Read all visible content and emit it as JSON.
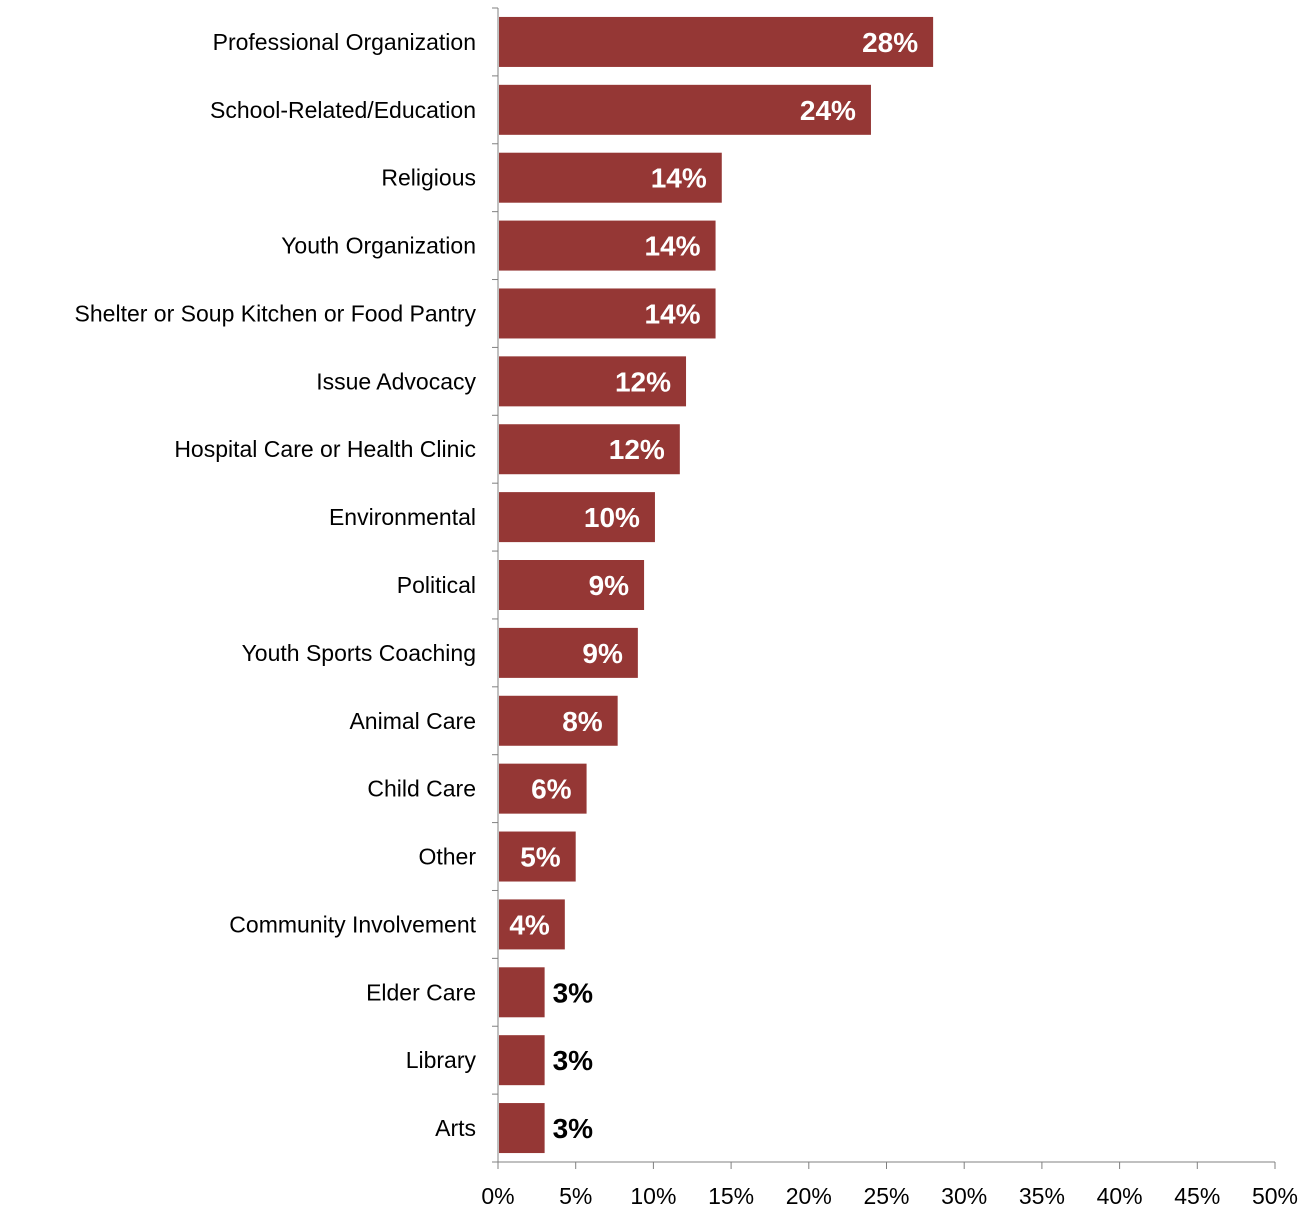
{
  "chart_data": {
    "type": "bar",
    "orientation": "horizontal",
    "categories": [
      "Professional Organization",
      "School-Related/Education",
      "Religious",
      "Youth Organization",
      "Shelter or Soup Kitchen or Food Pantry",
      "Issue Advocacy",
      "Hospital Care or Health Clinic",
      "Environmental",
      "Political",
      "Youth Sports Coaching",
      "Animal Care",
      "Child Care",
      "Other",
      "Community Involvement",
      "Elder Care",
      "Library",
      "Arts"
    ],
    "values": [
      28,
      24,
      14.4,
      14,
      14,
      12.1,
      11.7,
      10.1,
      9.4,
      9,
      7.7,
      5.7,
      5,
      4.3,
      3,
      3,
      3
    ],
    "data_labels": [
      "28%",
      "24%",
      "14%",
      "14%",
      "14%",
      "12%",
      "12%",
      "10%",
      "9%",
      "9%",
      "8%",
      "6%",
      "5%",
      "4%",
      "3%",
      "3%",
      "3%"
    ],
    "x_ticks": [
      0,
      5,
      10,
      15,
      20,
      25,
      30,
      35,
      40,
      45,
      50
    ],
    "x_tick_labels": [
      "0%",
      "5%",
      "10%",
      "15%",
      "20%",
      "25%",
      "30%",
      "35%",
      "40%",
      "45%",
      "50%"
    ],
    "xlim": [
      0,
      50
    ],
    "title": "",
    "xlabel": "",
    "ylabel": "",
    "grid": false,
    "legend": "none",
    "colors": {
      "bar": "#953735",
      "label_inside": "#ffffff",
      "label_outside": "#000000",
      "axis": "#808080"
    }
  }
}
